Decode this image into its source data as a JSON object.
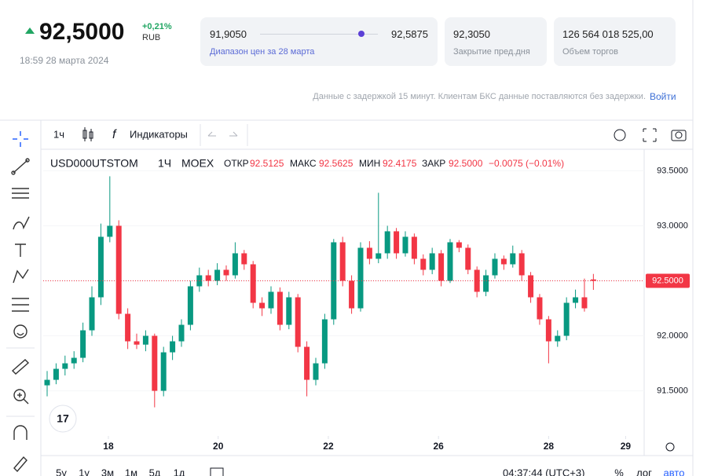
{
  "quote": {
    "price": "92,5000",
    "change": "+0,21%",
    "currency": "RUB",
    "time": "18:59 28 марта 2024"
  },
  "stats": {
    "range_low": "91,9050",
    "range_high": "92,5875",
    "range_label": "Диапазон цен за 28 марта",
    "prev_close": "92,3050",
    "prev_close_label": "Закрытие пред.дня",
    "volume": "126 564 018 525,00",
    "volume_label": "Объем торгов"
  },
  "notice": "Данные с задержкой 15 минут. Клиентам БКС данные поставляются без задержки.",
  "login": "Войти",
  "toolbar": {
    "interval": "1ч",
    "indicators": "Индикаторы"
  },
  "chart_data": {
    "type": "candlestick",
    "symbol": "USD000UTSTOM",
    "interval": "1Ч",
    "exchange": "MOEX",
    "legend_labels": {
      "open": "ОТКР",
      "high": "МАКС",
      "low": "МИН",
      "close": "ЗАКР"
    },
    "change": "−0.0075 (−0.01%)",
    "up_color": "#089981",
    "down_color": "#f23645",
    "candles": [
      {
        "open": 91.55,
        "high": 91.68,
        "low": 91.45,
        "close": 91.6
      },
      {
        "open": 91.6,
        "high": 91.75,
        "low": 91.56,
        "close": 91.7
      },
      {
        "open": 91.7,
        "high": 91.82,
        "low": 91.64,
        "close": 91.75
      },
      {
        "open": 91.75,
        "high": 91.86,
        "low": 91.7,
        "close": 91.8
      },
      {
        "open": 91.8,
        "high": 92.12,
        "low": 91.76,
        "close": 92.05
      },
      {
        "open": 92.05,
        "high": 92.45,
        "low": 92.0,
        "close": 92.35
      },
      {
        "open": 92.35,
        "high": 93.02,
        "low": 92.28,
        "close": 92.9
      },
      {
        "open": 92.9,
        "high": 93.45,
        "low": 92.85,
        "close": 93.0
      },
      {
        "open": 93.0,
        "high": 93.05,
        "low": 92.15,
        "close": 92.2
      },
      {
        "open": 92.2,
        "high": 92.25,
        "low": 91.88,
        "close": 91.95
      },
      {
        "open": 91.95,
        "high": 92.02,
        "low": 91.88,
        "close": 91.92
      },
      {
        "open": 91.92,
        "high": 92.05,
        "low": 91.86,
        "close": 92.0
      },
      {
        "open": 92.0,
        "high": 92.02,
        "low": 91.35,
        "close": 91.5
      },
      {
        "open": 91.5,
        "high": 91.9,
        "low": 91.45,
        "close": 91.85
      },
      {
        "open": 91.85,
        "high": 92.0,
        "low": 91.78,
        "close": 91.95
      },
      {
        "open": 91.95,
        "high": 92.15,
        "low": 91.9,
        "close": 92.1
      },
      {
        "open": 92.1,
        "high": 92.5,
        "low": 92.05,
        "close": 92.45
      },
      {
        "open": 92.45,
        "high": 92.62,
        "low": 92.4,
        "close": 92.55
      },
      {
        "open": 92.55,
        "high": 92.6,
        "low": 92.45,
        "close": 92.5
      },
      {
        "open": 92.5,
        "high": 92.66,
        "low": 92.46,
        "close": 92.6
      },
      {
        "open": 92.6,
        "high": 92.64,
        "low": 92.5,
        "close": 92.55
      },
      {
        "open": 92.55,
        "high": 92.85,
        "low": 92.52,
        "close": 92.75
      },
      {
        "open": 92.75,
        "high": 92.78,
        "low": 92.6,
        "close": 92.65
      },
      {
        "open": 92.65,
        "high": 92.68,
        "low": 92.25,
        "close": 92.3
      },
      {
        "open": 92.3,
        "high": 92.35,
        "low": 92.18,
        "close": 92.25
      },
      {
        "open": 92.25,
        "high": 92.45,
        "low": 92.2,
        "close": 92.4
      },
      {
        "open": 92.4,
        "high": 92.44,
        "low": 92.05,
        "close": 92.1
      },
      {
        "open": 92.1,
        "high": 92.4,
        "low": 92.06,
        "close": 92.35
      },
      {
        "open": 92.35,
        "high": 92.38,
        "low": 91.85,
        "close": 91.9
      },
      {
        "open": 91.9,
        "high": 91.95,
        "low": 91.45,
        "close": 91.6
      },
      {
        "open": 91.6,
        "high": 91.8,
        "low": 91.55,
        "close": 91.75
      },
      {
        "open": 91.75,
        "high": 92.2,
        "low": 91.7,
        "close": 92.15
      },
      {
        "open": 92.15,
        "high": 92.88,
        "low": 92.1,
        "close": 92.85
      },
      {
        "open": 92.85,
        "high": 92.9,
        "low": 92.45,
        "close": 92.5
      },
      {
        "open": 92.5,
        "high": 92.55,
        "low": 92.2,
        "close": 92.25
      },
      {
        "open": 92.25,
        "high": 92.85,
        "low": 92.22,
        "close": 92.8
      },
      {
        "open": 92.8,
        "high": 92.86,
        "low": 92.65,
        "close": 92.7
      },
      {
        "open": 92.7,
        "high": 93.3,
        "low": 92.66,
        "close": 92.75
      },
      {
        "open": 92.75,
        "high": 93.0,
        "low": 92.7,
        "close": 92.95
      },
      {
        "open": 92.95,
        "high": 92.98,
        "low": 92.7,
        "close": 92.75
      },
      {
        "open": 92.75,
        "high": 92.95,
        "low": 92.72,
        "close": 92.9
      },
      {
        "open": 92.9,
        "high": 92.93,
        "low": 92.65,
        "close": 92.7
      },
      {
        "open": 92.7,
        "high": 92.74,
        "low": 92.55,
        "close": 92.6
      },
      {
        "open": 92.6,
        "high": 92.8,
        "low": 92.56,
        "close": 92.75
      },
      {
        "open": 92.75,
        "high": 92.78,
        "low": 92.45,
        "close": 92.5
      },
      {
        "open": 92.5,
        "high": 92.88,
        "low": 92.48,
        "close": 92.85
      },
      {
        "open": 92.85,
        "high": 92.87,
        "low": 92.76,
        "close": 92.8
      },
      {
        "open": 92.8,
        "high": 92.83,
        "low": 92.56,
        "close": 92.6
      },
      {
        "open": 92.6,
        "high": 92.63,
        "low": 92.35,
        "close": 92.4
      },
      {
        "open": 92.4,
        "high": 92.6,
        "low": 92.36,
        "close": 92.55
      },
      {
        "open": 92.55,
        "high": 92.75,
        "low": 92.52,
        "close": 92.7
      },
      {
        "open": 92.7,
        "high": 92.73,
        "low": 92.6,
        "close": 92.65
      },
      {
        "open": 92.65,
        "high": 92.82,
        "low": 92.62,
        "close": 92.75
      },
      {
        "open": 92.75,
        "high": 92.78,
        "low": 92.5,
        "close": 92.55
      },
      {
        "open": 92.55,
        "high": 92.58,
        "low": 92.3,
        "close": 92.35
      },
      {
        "open": 92.35,
        "high": 92.38,
        "low": 92.1,
        "close": 92.15
      },
      {
        "open": 92.15,
        "high": 92.18,
        "low": 91.75,
        "close": 91.95
      },
      {
        "open": 91.95,
        "high": 92.05,
        "low": 91.9,
        "close": 92.0
      },
      {
        "open": 92.0,
        "high": 92.35,
        "low": 91.96,
        "close": 92.3
      },
      {
        "open": 92.3,
        "high": 92.42,
        "low": 92.25,
        "close": 92.35
      },
      {
        "open": 92.35,
        "high": 92.52,
        "low": 92.22,
        "close": 92.25
      },
      {
        "open": 92.5125,
        "high": 92.5625,
        "low": 92.4175,
        "close": 92.5,
        "close_label": "92.5000"
      }
    ],
    "ylim": [
      91.09,
      93.66
    ],
    "yticks": [
      {
        "value": 91.5,
        "label": "91.5000"
      },
      {
        "value": 92,
        "label": "92.0000"
      },
      {
        "value": 92.5,
        "label": "92.5000"
      },
      {
        "value": 93,
        "label": "93.0000"
      },
      {
        "value": 93.5,
        "label": "93.5000"
      }
    ],
    "xlim": [
      -0.44,
      66.67
    ],
    "xticks": [
      {
        "value": 6.84,
        "label": "18"
      },
      {
        "value": 19.1,
        "label": "20"
      },
      {
        "value": 31.4,
        "label": "22"
      },
      {
        "value": 43.7,
        "label": "26"
      },
      {
        "value": 56,
        "label": "28"
      },
      {
        "value": 64.6,
        "label": "29"
      }
    ],
    "last_price": {
      "value": 92.5,
      "label": "92.5000"
    }
  },
  "ranges": [
    "5у",
    "1у",
    "3м",
    "1м",
    "5д",
    "1д"
  ],
  "clock": "04:37:44 (UTC+3)",
  "scale_options": [
    "%",
    "лог",
    "авто"
  ]
}
